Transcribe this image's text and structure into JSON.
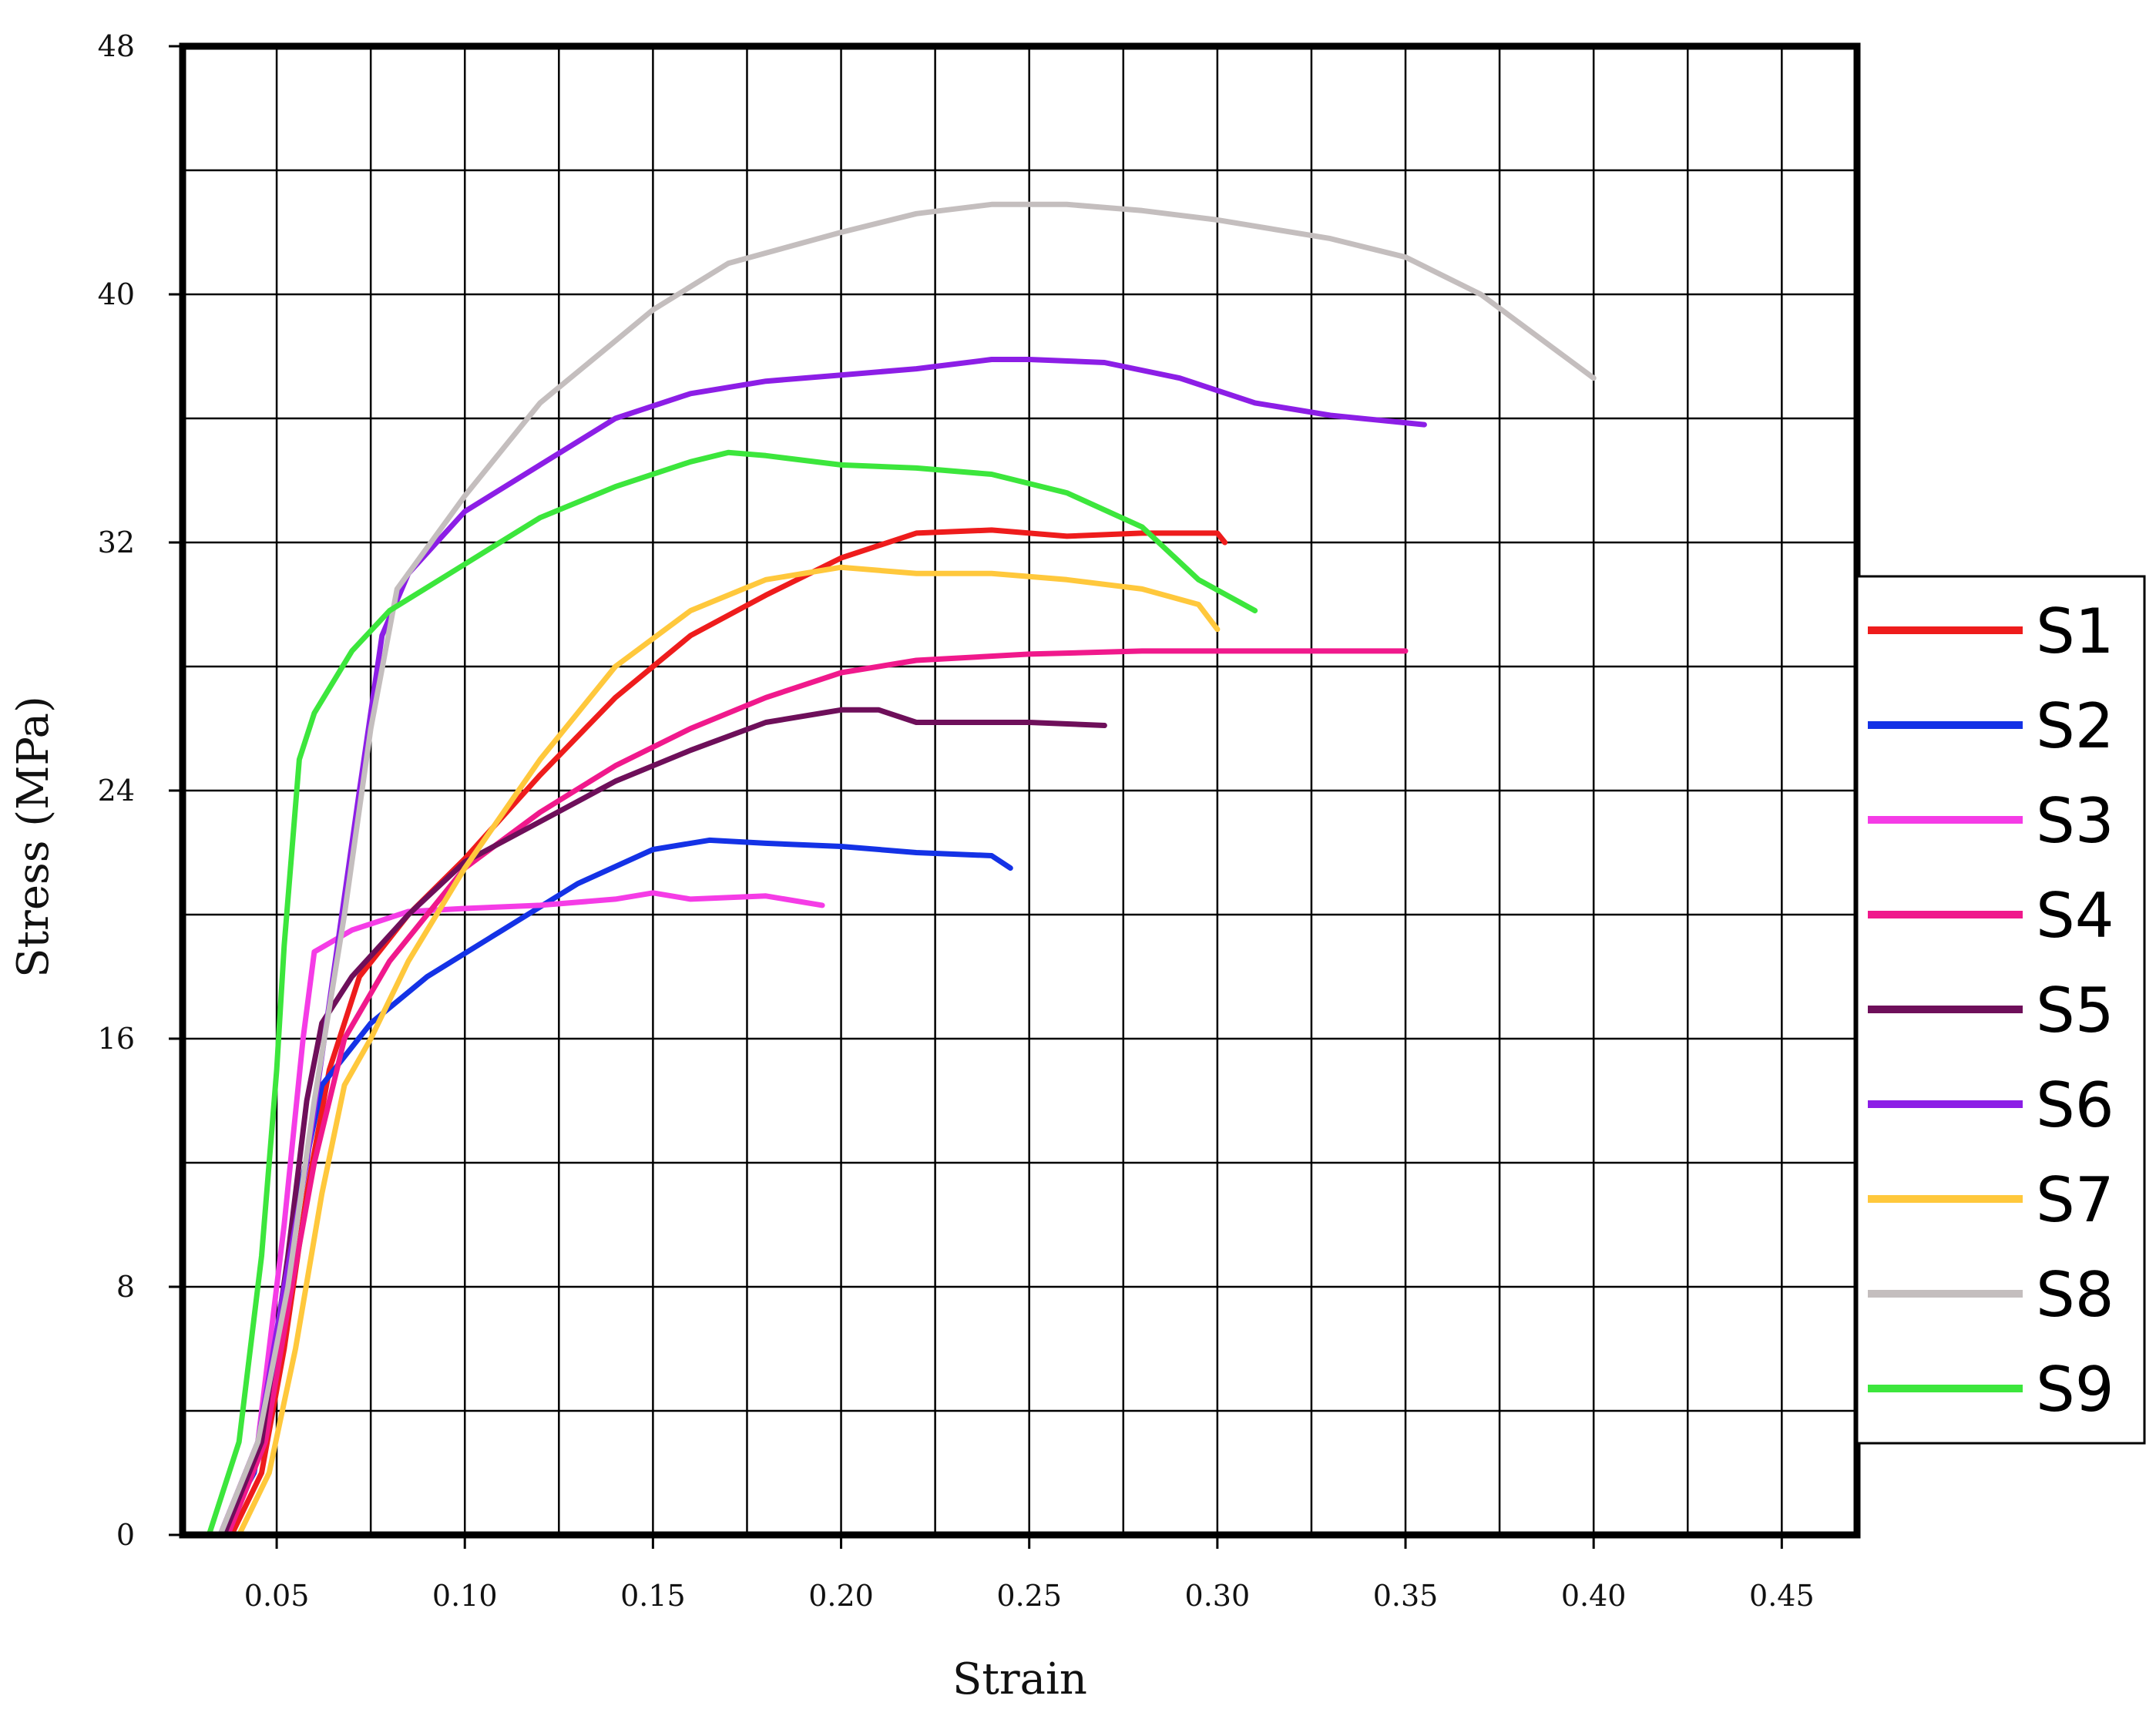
{
  "chart_data": {
    "type": "line",
    "xlabel": "Strain",
    "ylabel": "Stress (MPa)",
    "xlim": [
      0.025,
      0.47
    ],
    "ylim": [
      0,
      48
    ],
    "grid": true,
    "legend_position": "right",
    "x_ticks": [
      {
        "value": 0.05,
        "label": "0.05"
      },
      {
        "value": 0.1,
        "label": "0.10"
      },
      {
        "value": 0.15,
        "label": "0.15"
      },
      {
        "value": 0.2,
        "label": "0.20"
      },
      {
        "value": 0.25,
        "label": "0.25"
      },
      {
        "value": 0.3,
        "label": "0.30"
      },
      {
        "value": 0.35,
        "label": "0.35"
      },
      {
        "value": 0.4,
        "label": "0.40"
      },
      {
        "value": 0.45,
        "label": "0.45"
      }
    ],
    "y_ticks": [
      {
        "value": 0,
        "label": "0"
      },
      {
        "value": 8,
        "label": "8"
      },
      {
        "value": 16,
        "label": "16"
      },
      {
        "value": 24,
        "label": "24"
      },
      {
        "value": 32,
        "label": "32"
      },
      {
        "value": 40,
        "label": "40"
      },
      {
        "value": 48,
        "label": "48"
      }
    ],
    "series": [
      {
        "name": "S1",
        "color": "#ee1c1c",
        "points": [
          [
            0.038,
            0
          ],
          [
            0.046,
            2
          ],
          [
            0.052,
            6
          ],
          [
            0.058,
            11
          ],
          [
            0.064,
            15
          ],
          [
            0.072,
            18
          ],
          [
            0.085,
            20
          ],
          [
            0.1,
            21.8
          ],
          [
            0.12,
            24.5
          ],
          [
            0.14,
            27
          ],
          [
            0.16,
            29
          ],
          [
            0.18,
            30.3
          ],
          [
            0.2,
            31.5
          ],
          [
            0.22,
            32.3
          ],
          [
            0.24,
            32.4
          ],
          [
            0.26,
            32.2
          ],
          [
            0.28,
            32.3
          ],
          [
            0.3,
            32.3
          ],
          [
            0.302,
            32
          ]
        ]
      },
      {
        "name": "S2",
        "color": "#1432e6",
        "points": [
          [
            0.035,
            0
          ],
          [
            0.044,
            2
          ],
          [
            0.05,
            6
          ],
          [
            0.056,
            11
          ],
          [
            0.062,
            14.5
          ],
          [
            0.075,
            16.5
          ],
          [
            0.09,
            18
          ],
          [
            0.11,
            19.5
          ],
          [
            0.13,
            21
          ],
          [
            0.15,
            22.1
          ],
          [
            0.165,
            22.4
          ],
          [
            0.18,
            22.3
          ],
          [
            0.2,
            22.2
          ],
          [
            0.22,
            22
          ],
          [
            0.24,
            21.9
          ],
          [
            0.245,
            21.5
          ]
        ]
      },
      {
        "name": "S3",
        "color": "#f53ce6",
        "points": [
          [
            0.035,
            0
          ],
          [
            0.045,
            3
          ],
          [
            0.052,
            10
          ],
          [
            0.057,
            16
          ],
          [
            0.06,
            18.8
          ],
          [
            0.07,
            19.5
          ],
          [
            0.085,
            20.1
          ],
          [
            0.1,
            20.2
          ],
          [
            0.12,
            20.3
          ],
          [
            0.14,
            20.5
          ],
          [
            0.15,
            20.7
          ],
          [
            0.16,
            20.5
          ],
          [
            0.18,
            20.6
          ],
          [
            0.195,
            20.3
          ]
        ]
      },
      {
        "name": "S4",
        "color": "#f0198c",
        "points": [
          [
            0.037,
            0
          ],
          [
            0.047,
            3
          ],
          [
            0.054,
            8
          ],
          [
            0.06,
            12
          ],
          [
            0.068,
            16
          ],
          [
            0.08,
            18.5
          ],
          [
            0.1,
            21.5
          ],
          [
            0.12,
            23.3
          ],
          [
            0.14,
            24.8
          ],
          [
            0.16,
            26
          ],
          [
            0.18,
            27
          ],
          [
            0.2,
            27.8
          ],
          [
            0.22,
            28.2
          ],
          [
            0.25,
            28.4
          ],
          [
            0.28,
            28.5
          ],
          [
            0.32,
            28.5
          ],
          [
            0.35,
            28.5
          ]
        ]
      },
      {
        "name": "S5",
        "color": "#6e0f5a",
        "points": [
          [
            0.036,
            0
          ],
          [
            0.046,
            3
          ],
          [
            0.053,
            9
          ],
          [
            0.058,
            14
          ],
          [
            0.062,
            16.5
          ],
          [
            0.07,
            18
          ],
          [
            0.085,
            20
          ],
          [
            0.1,
            21.7
          ],
          [
            0.12,
            23
          ],
          [
            0.14,
            24.3
          ],
          [
            0.16,
            25.3
          ],
          [
            0.18,
            26.2
          ],
          [
            0.2,
            26.6
          ],
          [
            0.21,
            26.6
          ],
          [
            0.22,
            26.2
          ],
          [
            0.25,
            26.2
          ],
          [
            0.27,
            26.1
          ]
        ]
      },
      {
        "name": "S6",
        "color": "#8c1ee6",
        "points": [
          [
            0.035,
            0
          ],
          [
            0.045,
            3
          ],
          [
            0.052,
            8
          ],
          [
            0.058,
            12
          ],
          [
            0.065,
            18
          ],
          [
            0.072,
            24
          ],
          [
            0.078,
            29
          ],
          [
            0.085,
            31
          ],
          [
            0.1,
            33
          ],
          [
            0.12,
            34.5
          ],
          [
            0.14,
            36
          ],
          [
            0.16,
            36.8
          ],
          [
            0.18,
            37.2
          ],
          [
            0.2,
            37.4
          ],
          [
            0.22,
            37.6
          ],
          [
            0.24,
            37.9
          ],
          [
            0.25,
            37.9
          ],
          [
            0.27,
            37.8
          ],
          [
            0.29,
            37.3
          ],
          [
            0.31,
            36.5
          ],
          [
            0.33,
            36.1
          ],
          [
            0.355,
            35.8
          ]
        ]
      },
      {
        "name": "S7",
        "color": "#ffc83c",
        "points": [
          [
            0.04,
            0
          ],
          [
            0.048,
            2
          ],
          [
            0.055,
            6
          ],
          [
            0.062,
            11
          ],
          [
            0.068,
            14.5
          ],
          [
            0.075,
            16
          ],
          [
            0.085,
            18.5
          ],
          [
            0.1,
            21.5
          ],
          [
            0.12,
            25
          ],
          [
            0.14,
            28
          ],
          [
            0.16,
            29.8
          ],
          [
            0.18,
            30.8
          ],
          [
            0.2,
            31.2
          ],
          [
            0.22,
            31
          ],
          [
            0.24,
            31
          ],
          [
            0.26,
            30.8
          ],
          [
            0.28,
            30.5
          ],
          [
            0.295,
            30
          ],
          [
            0.3,
            29.2
          ]
        ]
      },
      {
        "name": "S8",
        "color": "#c4bebe",
        "points": [
          [
            0.035,
            0
          ],
          [
            0.045,
            3
          ],
          [
            0.053,
            8
          ],
          [
            0.06,
            14
          ],
          [
            0.068,
            20
          ],
          [
            0.075,
            26
          ],
          [
            0.082,
            30.5
          ],
          [
            0.1,
            33.5
          ],
          [
            0.12,
            36.5
          ],
          [
            0.14,
            38.5
          ],
          [
            0.15,
            39.5
          ],
          [
            0.17,
            41
          ],
          [
            0.2,
            42
          ],
          [
            0.22,
            42.6
          ],
          [
            0.24,
            42.9
          ],
          [
            0.26,
            42.9
          ],
          [
            0.28,
            42.7
          ],
          [
            0.3,
            42.4
          ],
          [
            0.33,
            41.8
          ],
          [
            0.35,
            41.2
          ],
          [
            0.37,
            40
          ],
          [
            0.39,
            38.2
          ],
          [
            0.4,
            37.3
          ]
        ]
      },
      {
        "name": "S9",
        "color": "#3ce63c",
        "points": [
          [
            0.032,
            0
          ],
          [
            0.04,
            3
          ],
          [
            0.046,
            9
          ],
          [
            0.05,
            15
          ],
          [
            0.052,
            19
          ],
          [
            0.056,
            25
          ],
          [
            0.06,
            26.5
          ],
          [
            0.07,
            28.5
          ],
          [
            0.08,
            29.8
          ],
          [
            0.1,
            31.3
          ],
          [
            0.12,
            32.8
          ],
          [
            0.14,
            33.8
          ],
          [
            0.16,
            34.6
          ],
          [
            0.17,
            34.9
          ],
          [
            0.18,
            34.8
          ],
          [
            0.2,
            34.5
          ],
          [
            0.22,
            34.4
          ],
          [
            0.24,
            34.2
          ],
          [
            0.26,
            33.6
          ],
          [
            0.28,
            32.5
          ],
          [
            0.295,
            30.8
          ],
          [
            0.31,
            29.8
          ]
        ]
      }
    ]
  }
}
